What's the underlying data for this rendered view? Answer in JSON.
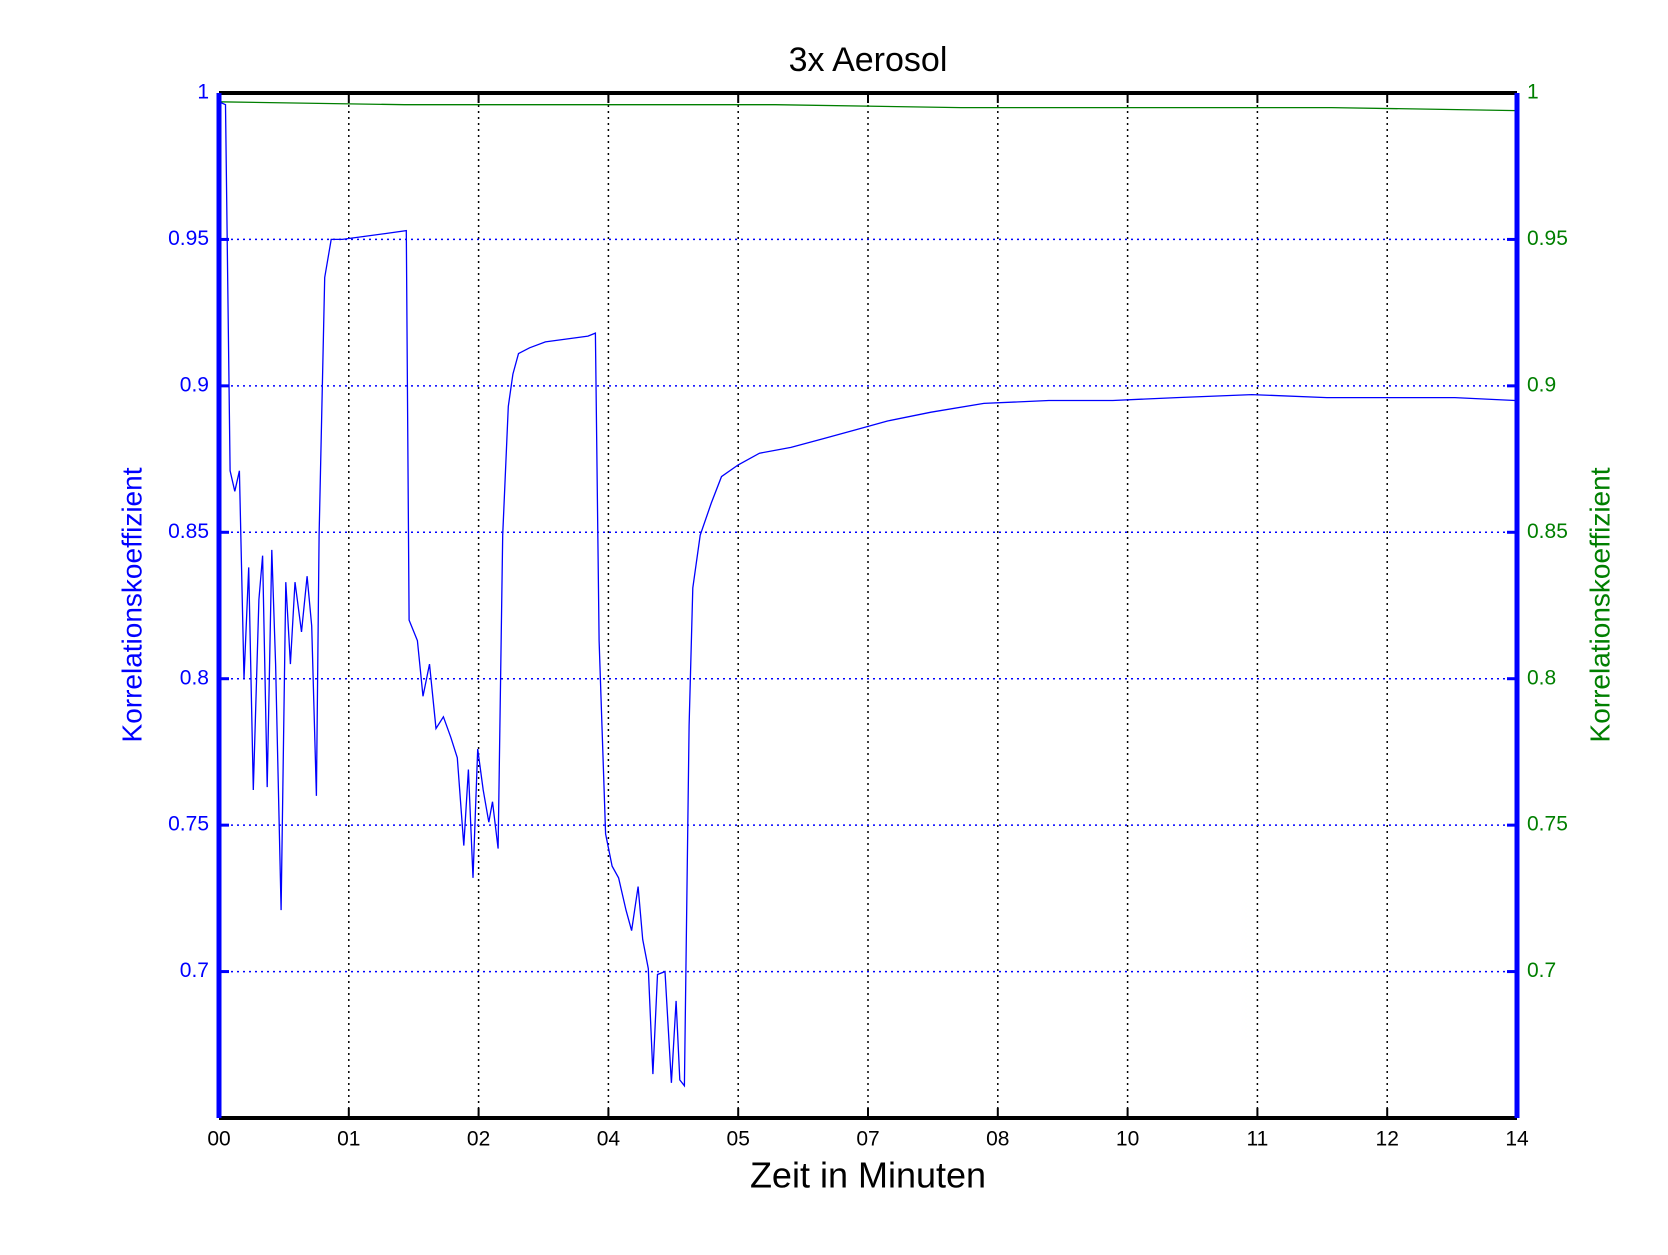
{
  "chart_data": {
    "type": "line",
    "title": "3x Aerosol",
    "xlabel": "Zeit in Minuten",
    "ylabel": "Korrelationskoeffizient",
    "y2label": "Korrelationskoeffizient",
    "xlim": [
      0,
      14
    ],
    "xticks": [
      {
        "value": 0,
        "label": "00"
      },
      {
        "value": 1.4,
        "label": "01"
      },
      {
        "value": 2.8,
        "label": "02"
      },
      {
        "value": 4.2,
        "label": "04"
      },
      {
        "value": 5.6,
        "label": "05"
      },
      {
        "value": 7,
        "label": "07"
      },
      {
        "value": 8.4,
        "label": "08"
      },
      {
        "value": 9.8,
        "label": "10"
      },
      {
        "value": 11.2,
        "label": "11"
      },
      {
        "value": 12.6,
        "label": "12"
      },
      {
        "value": 14,
        "label": "14"
      }
    ],
    "ylim": [
      0.65,
      1
    ],
    "yticks": [
      0.7,
      0.75,
      0.8,
      0.85,
      0.9,
      0.95,
      1
    ],
    "y2lim": [
      0.65,
      1
    ],
    "y2ticks": [
      0.7,
      0.75,
      0.8,
      0.85,
      0.9,
      0.95,
      1
    ],
    "grid": true,
    "ycolor": "#0000ff",
    "y2color": "#007f00",
    "series": [
      {
        "color": "#0000ff",
        "x": [
          0,
          0.07,
          0.12,
          0.17,
          0.22,
          0.27,
          0.32,
          0.37,
          0.43,
          0.47,
          0.52,
          0.57,
          0.61,
          0.67,
          0.72,
          0.77,
          0.82,
          0.89,
          0.95,
          1.0,
          1.05,
          1.08,
          1.14,
          1.21,
          1.33,
          1.56,
          1.79,
          2.02,
          2.05,
          2.14,
          2.2,
          2.27,
          2.34,
          2.42,
          2.5,
          2.57,
          2.64,
          2.69,
          2.74,
          2.79,
          2.85,
          2.91,
          2.95,
          3.01,
          3.06,
          3.12,
          3.17,
          3.23,
          3.35,
          3.52,
          3.75,
          3.98,
          4.06,
          4.1,
          4.17,
          4.24,
          4.31,
          4.39,
          4.45,
          4.52,
          4.57,
          4.63,
          4.68,
          4.73,
          4.81,
          4.88,
          4.93,
          4.97,
          5.02,
          5.07,
          5.11,
          5.19,
          5.31,
          5.42,
          5.6,
          5.83,
          6.17,
          6.52,
          6.87,
          7.21,
          7.68,
          8.25,
          8.95,
          9.64,
          10.33,
          11.14,
          11.95,
          12.64,
          13.33,
          13.98
        ],
        "values": [
          0.997,
          0.996,
          0.871,
          0.864,
          0.871,
          0.8,
          0.838,
          0.762,
          0.827,
          0.842,
          0.763,
          0.844,
          0.805,
          0.721,
          0.833,
          0.805,
          0.833,
          0.816,
          0.835,
          0.818,
          0.76,
          0.849,
          0.937,
          0.95,
          0.95,
          0.951,
          0.952,
          0.953,
          0.82,
          0.813,
          0.794,
          0.805,
          0.783,
          0.787,
          0.78,
          0.773,
          0.743,
          0.769,
          0.732,
          0.776,
          0.762,
          0.751,
          0.758,
          0.742,
          0.849,
          0.893,
          0.904,
          0.911,
          0.913,
          0.915,
          0.916,
          0.917,
          0.918,
          0.813,
          0.747,
          0.736,
          0.732,
          0.721,
          0.714,
          0.729,
          0.711,
          0.701,
          0.665,
          0.699,
          0.7,
          0.662,
          0.69,
          0.663,
          0.661,
          0.784,
          0.831,
          0.849,
          0.86,
          0.869,
          0.873,
          0.877,
          0.879,
          0.882,
          0.885,
          0.888,
          0.891,
          0.894,
          0.895,
          0.895,
          0.896,
          0.897,
          0.896,
          0.896,
          0.896,
          0.895
        ]
      },
      {
        "color": "#007f00",
        "axis": "y2",
        "x": [
          0,
          2,
          4,
          6,
          8,
          10,
          12,
          14
        ],
        "values": [
          0.997,
          0.996,
          0.996,
          0.996,
          0.995,
          0.995,
          0.995,
          0.994
        ]
      }
    ]
  }
}
